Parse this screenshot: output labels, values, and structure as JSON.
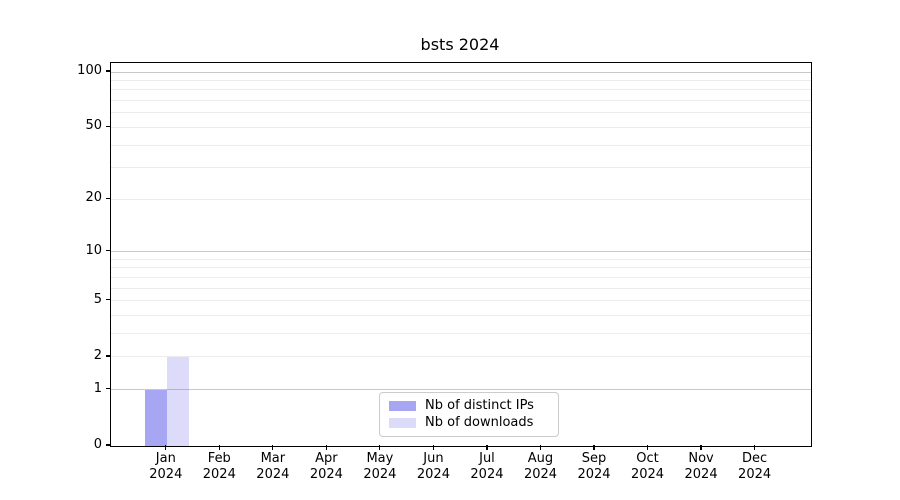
{
  "chart_data": {
    "type": "bar",
    "title": "bsts 2024",
    "categories": [
      {
        "month": "Jan",
        "year": "2024"
      },
      {
        "month": "Feb",
        "year": "2024"
      },
      {
        "month": "Mar",
        "year": "2024"
      },
      {
        "month": "Apr",
        "year": "2024"
      },
      {
        "month": "May",
        "year": "2024"
      },
      {
        "month": "Jun",
        "year": "2024"
      },
      {
        "month": "Jul",
        "year": "2024"
      },
      {
        "month": "Aug",
        "year": "2024"
      },
      {
        "month": "Sep",
        "year": "2024"
      },
      {
        "month": "Oct",
        "year": "2024"
      },
      {
        "month": "Nov",
        "year": "2024"
      },
      {
        "month": "Dec",
        "year": "2024"
      }
    ],
    "series": [
      {
        "name": "Nb of distinct IPs",
        "base_color": "#6e6eeb",
        "alpha": 0.61,
        "rendered_color": "#a3a3f1",
        "values": [
          1,
          0,
          0,
          0,
          0,
          0,
          0,
          0,
          0,
          0,
          0,
          0
        ]
      },
      {
        "name": "Nb of downloads",
        "base_color": "#6e6eeb",
        "alpha": 0.24,
        "rendered_color": "#dcdcfa",
        "values": [
          2,
          0,
          0,
          0,
          0,
          0,
          0,
          0,
          0,
          0,
          0,
          0
        ]
      }
    ],
    "xlabel": "",
    "ylabel": "",
    "yscale": "log1p",
    "ylim": [
      0,
      112
    ],
    "y_ticks": [
      0,
      1,
      2,
      5,
      10,
      20,
      50,
      100
    ],
    "y_major_gridlines": [
      1,
      10,
      100
    ],
    "y_minor_gridlines": [
      2,
      3,
      4,
      6,
      7,
      8,
      9,
      5,
      20,
      30,
      40,
      50,
      60,
      70,
      80,
      90
    ],
    "grid": true,
    "legend_position": "bottom-center",
    "colors": {
      "major_grid": "#c8c8c8",
      "minor_grid": "#ececec",
      "axis": "#000000",
      "text": "#000000",
      "background": "#ffffff"
    }
  }
}
